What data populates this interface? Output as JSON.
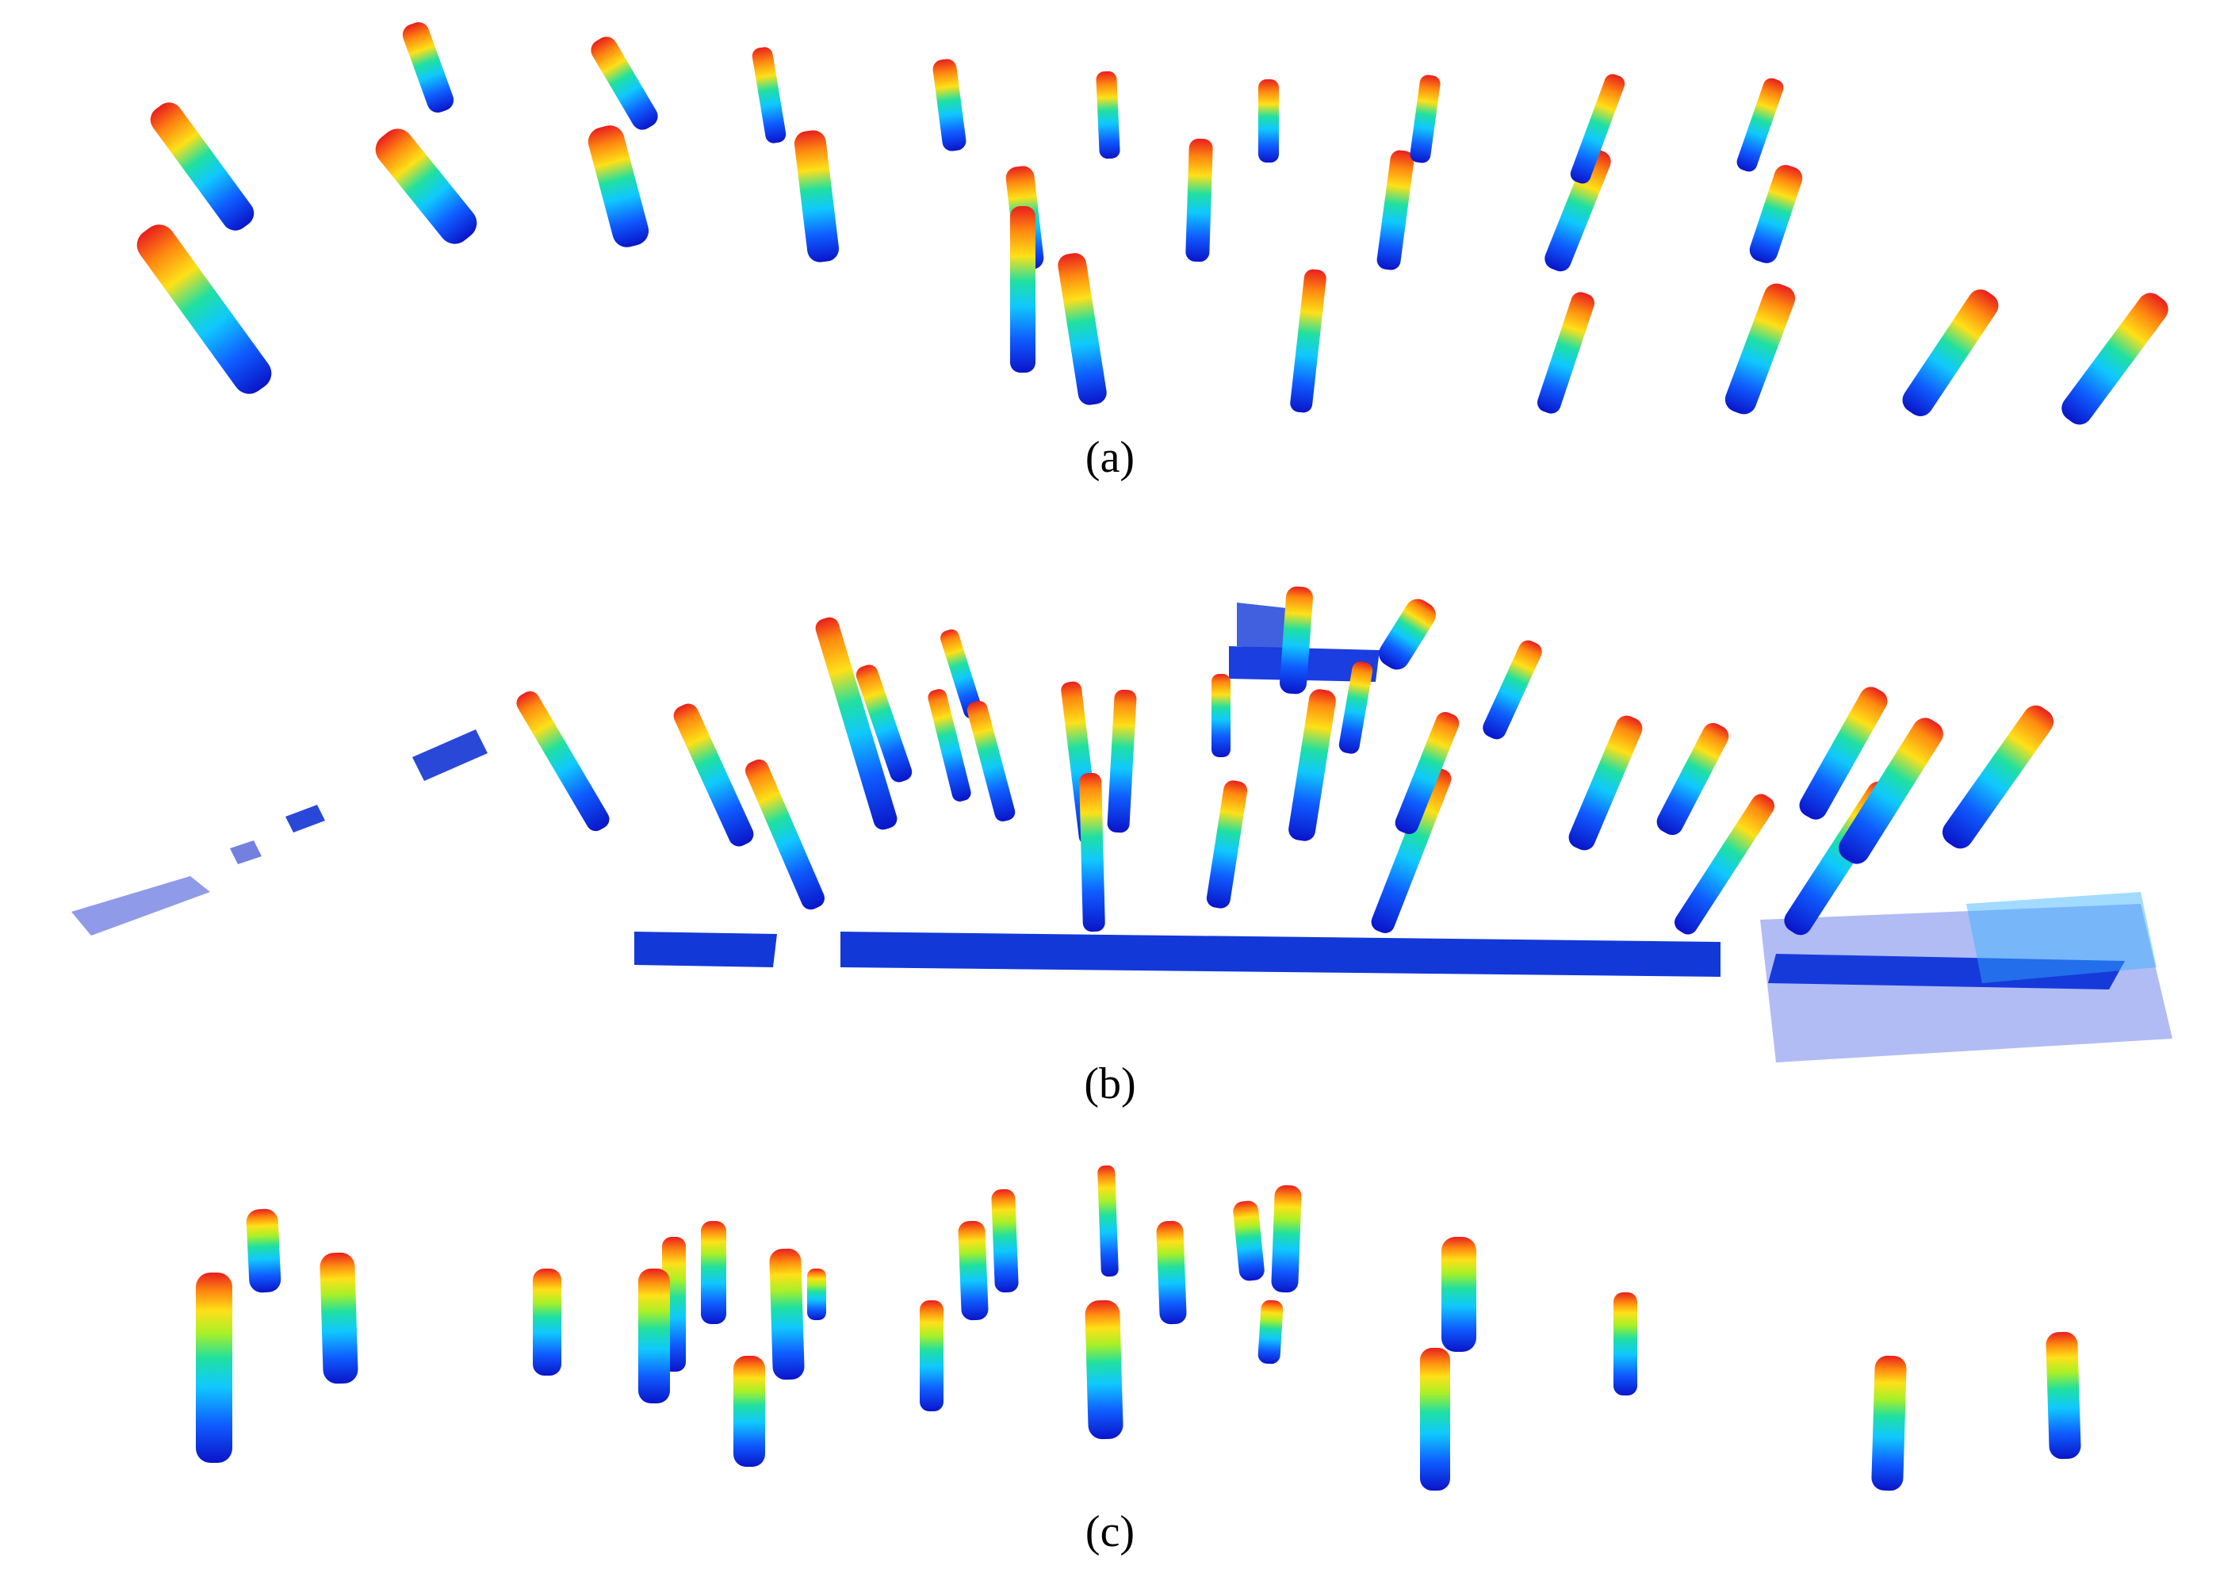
{
  "figure": {
    "panels": [
      {
        "id": "a",
        "caption": "(a)"
      },
      {
        "id": "b",
        "caption": "(b)"
      },
      {
        "id": "c",
        "caption": "(c)"
      }
    ],
    "colormap": [
      "#0a14c8",
      "#0f5cff",
      "#10c8ff",
      "#20e0a0",
      "#a8f028",
      "#ffe018",
      "#ff8a10",
      "#e81e1e"
    ]
  }
}
